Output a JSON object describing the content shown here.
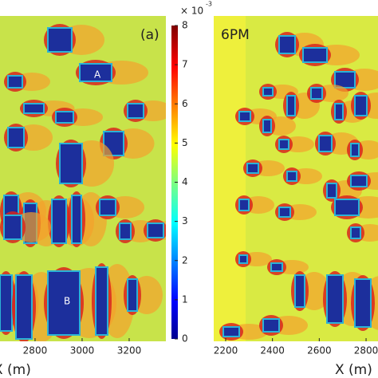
{
  "chart_data": [
    {
      "type": "heatmap",
      "panel_label": "(a)",
      "annotations": [
        "A",
        "B"
      ],
      "xlabel": "X (m)",
      "xlim": [
        2651,
        3356
      ],
      "xticks": [
        2800,
        3000,
        3200
      ]
    },
    {
      "type": "heatmap",
      "panel_label": "6PM",
      "xlabel": "X (m)",
      "xlim": [
        2149,
        2851
      ],
      "xticks": [
        2200,
        2400,
        2600,
        2800
      ]
    }
  ],
  "colorbar": {
    "ylim": [
      0,
      8
    ],
    "yticks": [
      0,
      1,
      2,
      3,
      4,
      5,
      6,
      7,
      8
    ],
    "scale_label": "× 10",
    "scale_exponent": "-3"
  }
}
